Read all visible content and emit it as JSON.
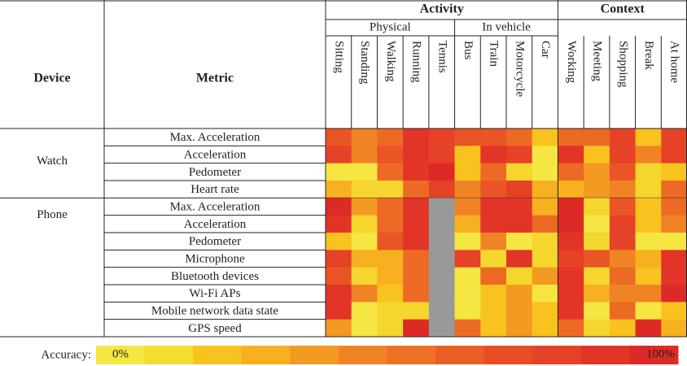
{
  "header": {
    "device": "Device",
    "metric": "Metric",
    "activity": {
      "label": "Activity",
      "physical": {
        "label": "Physical",
        "columns": [
          "Sitting",
          "Standing",
          "Walking",
          "Running",
          "Tennis"
        ]
      },
      "vehicle": {
        "label": "In vehicle",
        "columns": [
          "Bus",
          "Train",
          "Motorcycle",
          "Car"
        ]
      }
    },
    "context": {
      "label": "Context",
      "columns": [
        "Working",
        "Meeting",
        "Shopping",
        "Break",
        "At home"
      ]
    }
  },
  "table": {
    "groups": [
      {
        "device": "Watch",
        "rows": [
          {
            "metric": "Max. Acceleration",
            "colors": [
              "#ea5525",
              "#f08424",
              "#ed6a25",
              "#e23528",
              "#e64227",
              "#ea5525",
              "#ea5525",
              "#ed6a25",
              "#f9c31f",
              "#ed6a25",
              "#ed6a25",
              "#e64227",
              "#f9c31f",
              "#e64227"
            ]
          },
          {
            "metric": "Acceleration",
            "colors": [
              "#e64227",
              "#f08424",
              "#ea5525",
              "#e23528",
              "#e64227",
              "#f9c31f",
              "#e23528",
              "#e64227",
              "#f5e642",
              "#e23528",
              "#f9c31f",
              "#e64227",
              "#f08424",
              "#e64227"
            ]
          },
          {
            "metric": "Pedometer",
            "colors": [
              "#f5e642",
              "#f5e642",
              "#ed6a25",
              "#e23528",
              "#de2a26",
              "#f9c31f",
              "#ed6a25",
              "#f5d62e",
              "#f5e642",
              "#ed6a25",
              "#f39a22",
              "#ea5525",
              "#f5d62e",
              "#f9c31f"
            ]
          },
          {
            "metric": "Heart rate",
            "colors": [
              "#f7b020",
              "#f5d62e",
              "#f5d62e",
              "#ed6a25",
              "#e64227",
              "#f08424",
              "#ea5525",
              "#e64227",
              "#f7b020",
              "#f7b020",
              "#f39a22",
              "#f08424",
              "#f5d62e",
              "#ed6a25"
            ]
          }
        ]
      },
      {
        "device": "Phone",
        "rows": [
          {
            "metric": "Max. Acceleration",
            "colors": [
              "#de2a26",
              "#f39a22",
              "#ed6a25",
              "#e23528",
              "#999999",
              "#f08424",
              "#e23528",
              "#e23528",
              "#f7b020",
              "#de2a26",
              "#f5d62e",
              "#ea5525",
              "#f9c31f",
              "#ed6a25"
            ]
          },
          {
            "metric": "Acceleration",
            "colors": [
              "#e23528",
              "#f5d62e",
              "#ed6a25",
              "#e23528",
              "#999999",
              "#f7b020",
              "#e23528",
              "#e23528",
              "#ed6a25",
              "#de2a26",
              "#f5e642",
              "#e64227",
              "#f9c31f",
              "#f08424"
            ]
          },
          {
            "metric": "Pedometer",
            "colors": [
              "#f9c31f",
              "#f5e642",
              "#ea5525",
              "#e23528",
              "#999999",
              "#f5e642",
              "#f08424",
              "#f5e642",
              "#f5d62e",
              "#e23528",
              "#f5d62e",
              "#e64227",
              "#f5e642",
              "#f5e642"
            ]
          },
          {
            "metric": "Microphone",
            "colors": [
              "#e64227",
              "#f7b020",
              "#f7b020",
              "#ed6a25",
              "#999999",
              "#e64227",
              "#f5d62e",
              "#e23528",
              "#f5d62e",
              "#e64227",
              "#ea5525",
              "#f08424",
              "#f7b020",
              "#e23528"
            ]
          },
          {
            "metric": "Bluetooth devices",
            "colors": [
              "#ea5525",
              "#f5d62e",
              "#f7b020",
              "#ed6a25",
              "#999999",
              "#f5e642",
              "#ed6a25",
              "#f5d62e",
              "#f39a22",
              "#e23528",
              "#f5d62e",
              "#ed6a25",
              "#f9c31f",
              "#e23528"
            ]
          },
          {
            "metric": "Wi-Fi APs",
            "colors": [
              "#e23528",
              "#f08424",
              "#f9c31f",
              "#ed6a25",
              "#999999",
              "#f5e642",
              "#f9c31f",
              "#f39a22",
              "#f5e642",
              "#e23528",
              "#f7b020",
              "#f08424",
              "#f08424",
              "#de2a26"
            ]
          },
          {
            "metric": "Mobile network data state",
            "colors": [
              "#e23528",
              "#f5e642",
              "#f5d62e",
              "#f5d62e",
              "#999999",
              "#f5e642",
              "#f9c31f",
              "#f39a22",
              "#f9c31f",
              "#e23528",
              "#f5e642",
              "#ed6a25",
              "#f5e642",
              "#f9c31f"
            ]
          },
          {
            "metric": "GPS speed",
            "colors": [
              "#f39a22",
              "#f5e642",
              "#f5d62e",
              "#de2a26",
              "#999999",
              "#ed6a25",
              "#f9c31f",
              "#f39a22",
              "#f9c31f",
              "#ed6a25",
              "#f5d62e",
              "#f9c31f",
              "#de2a26",
              "#f7b020"
            ]
          }
        ]
      }
    ]
  },
  "legend": {
    "label": "Accuracy:",
    "min": "0%",
    "max": "100%",
    "colors": [
      "#f5e642",
      "#f5dc30",
      "#f9c31f",
      "#f7b020",
      "#f39a22",
      "#f08424",
      "#ed7225",
      "#ea5f25",
      "#e84d26",
      "#e64227",
      "#e23528",
      "#de2a26"
    ]
  }
}
